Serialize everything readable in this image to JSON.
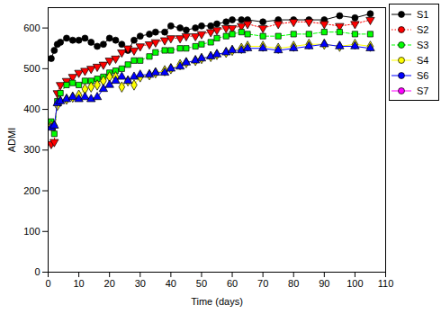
{
  "chart_data": {
    "type": "line",
    "x_label": "Time (days)",
    "y_label": "ADMI",
    "x": [
      1,
      2,
      3,
      4,
      6,
      8,
      10,
      12,
      14,
      16,
      18,
      20,
      22,
      24,
      26,
      28,
      30,
      33,
      35,
      38,
      40,
      43,
      45,
      48,
      50,
      53,
      55,
      58,
      60,
      63,
      65,
      70,
      75,
      80,
      85,
      90,
      95,
      100,
      105
    ],
    "series": [
      {
        "name": "S1",
        "color": "#000000",
        "marker": "circle",
        "line_style": "solid",
        "values": [
          525,
          545,
          560,
          565,
          575,
          570,
          570,
          575,
          565,
          555,
          560,
          575,
          570,
          560,
          545,
          570,
          580,
          585,
          590,
          590,
          605,
          600,
          595,
          600,
          605,
          605,
          610,
          615,
          620,
          620,
          620,
          615,
          620,
          620,
          620,
          620,
          630,
          625,
          635
        ]
      },
      {
        "name": "S2",
        "color": "#ff0000",
        "marker": "triangle-down",
        "line_style": "dotted",
        "values": [
          315,
          320,
          440,
          460,
          470,
          480,
          490,
          495,
          500,
          505,
          510,
          520,
          525,
          540,
          550,
          545,
          555,
          560,
          565,
          570,
          575,
          575,
          580,
          580,
          585,
          590,
          595,
          600,
          600,
          605,
          610,
          600,
          610,
          615,
          615,
          610,
          605,
          610,
          620
        ]
      },
      {
        "name": "S3",
        "color": "#00ff00",
        "marker": "square",
        "line_style": "dashed",
        "values": [
          370,
          340,
          420,
          440,
          460,
          465,
          460,
          470,
          470,
          475,
          480,
          490,
          495,
          500,
          510,
          520,
          520,
          530,
          540,
          545,
          545,
          550,
          550,
          555,
          560,
          565,
          575,
          580,
          585,
          590,
          585,
          580,
          580,
          585,
          585,
          590,
          590,
          585,
          585
        ]
      },
      {
        "name": "S4",
        "color": "#ffff00",
        "marker": "diamond",
        "line_style": "solid",
        "values": [
          360,
          360,
          410,
          420,
          425,
          430,
          435,
          450,
          455,
          460,
          470,
          480,
          480,
          455,
          470,
          460,
          480,
          485,
          490,
          495,
          500,
          510,
          515,
          520,
          525,
          530,
          535,
          540,
          545,
          550,
          555,
          555,
          550,
          555,
          560,
          560,
          555,
          560,
          555
        ]
      },
      {
        "name": "S6",
        "color": "#0000ff",
        "marker": "triangle",
        "line_style": "solid",
        "values": [
          355,
          360,
          415,
          420,
          425,
          430,
          425,
          430,
          425,
          430,
          450,
          460,
          470,
          480,
          470,
          480,
          485,
          485,
          490,
          490,
          500,
          505,
          515,
          520,
          525,
          530,
          535,
          540,
          545,
          545,
          550,
          550,
          545,
          550,
          555,
          560,
          555,
          555,
          550
        ]
      },
      {
        "name": "S7",
        "color": "#ff00ff",
        "marker": "circle",
        "line_style": "solid",
        "values": [
          null,
          null,
          null,
          null,
          null,
          null,
          null,
          null,
          null,
          null,
          null,
          null,
          null,
          null,
          null,
          null,
          null,
          null,
          null,
          null,
          null,
          null,
          null,
          null,
          null,
          null,
          null,
          null,
          null,
          null,
          null,
          null,
          null,
          null,
          null,
          null,
          null,
          null,
          null
        ]
      }
    ],
    "xlim": [
      0,
      110
    ],
    "xticks": [
      0,
      10,
      20,
      30,
      40,
      50,
      60,
      70,
      80,
      90,
      100,
      110
    ],
    "ylim": [
      0,
      650
    ],
    "yticks": [
      0,
      100,
      200,
      300,
      400,
      500,
      600
    ],
    "grid": false,
    "legend": "top-right"
  }
}
